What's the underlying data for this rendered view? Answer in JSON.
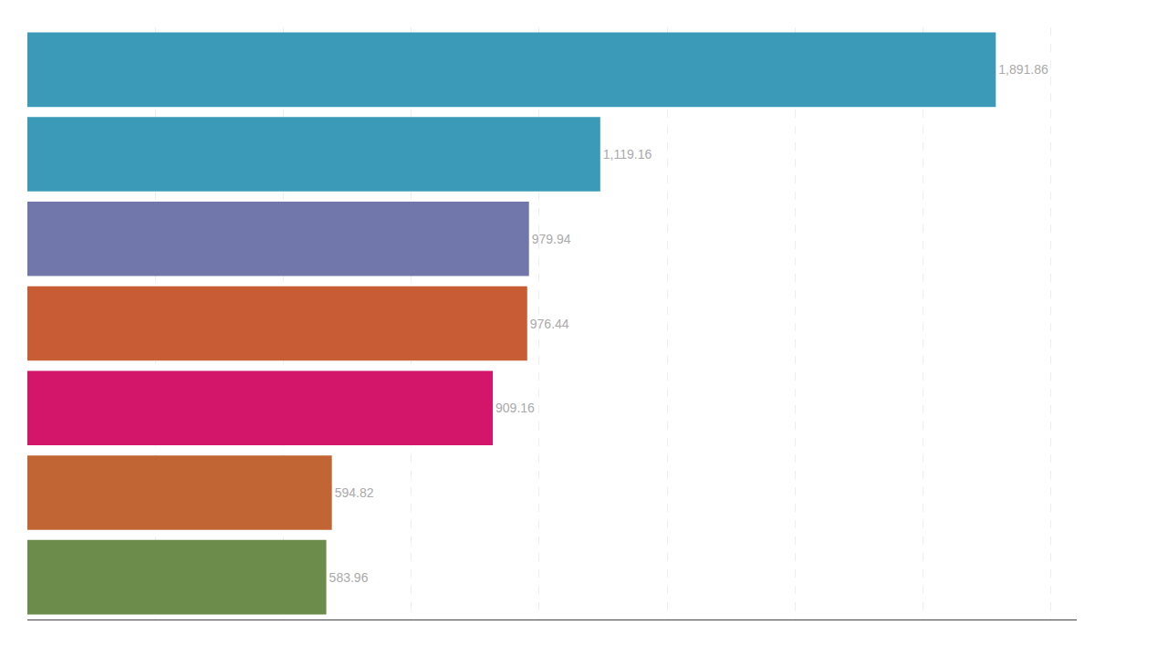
{
  "chart_data": {
    "type": "bar",
    "orientation": "horizontal",
    "categories": [
      null,
      null,
      null,
      null,
      null,
      null,
      null
    ],
    "values": [
      1891.86,
      1119.16,
      979.94,
      976.44,
      909.16,
      594.82,
      583.96
    ],
    "value_labels": [
      "1,891.86",
      "1,119.16",
      "979.94",
      "976.44",
      "909.16",
      "594.82",
      "583.96"
    ],
    "colors": [
      "#3a9ab8",
      "#3a9ab8",
      "#7177aa",
      "#c85c35",
      "#d4166a",
      "#c26535",
      "#6b8c4a"
    ],
    "xlim": [
      0,
      2050
    ],
    "xticks": [
      250,
      500,
      750,
      1000,
      1250,
      1500,
      1750,
      2000
    ],
    "grid": true,
    "data_labels": true,
    "tick_labels": false
  }
}
